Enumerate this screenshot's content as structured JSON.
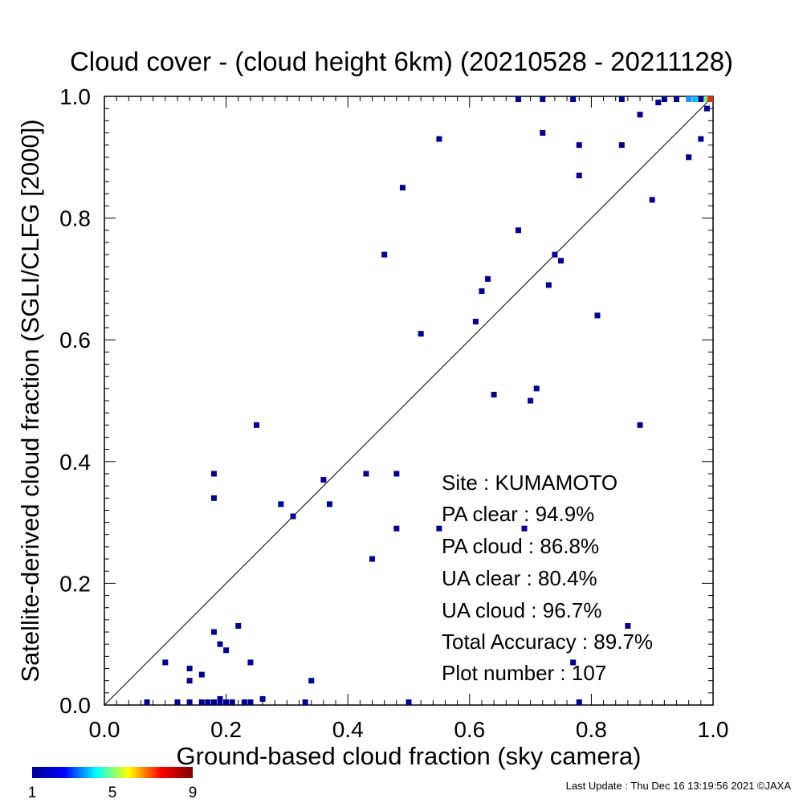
{
  "chart_data": {
    "type": "scatter",
    "title": "Cloud cover - (cloud height 6km)  (20210528 - 20211128)",
    "xlabel": "Ground-based cloud fraction (sky camera)",
    "ylabel": "Satellite-derived cloud fraction (SGLI/CLFG [2000])",
    "xlim": [
      0,
      1
    ],
    "ylim": [
      0,
      1
    ],
    "xticks": [
      "0.0",
      "0.2",
      "0.4",
      "0.6",
      "0.8",
      "1.0"
    ],
    "yticks": [
      "0.0",
      "0.2",
      "0.4",
      "0.6",
      "0.8",
      "1.0"
    ],
    "grid": false,
    "reference_line": "y = x",
    "points": [
      [
        0.07,
        0.0
      ],
      [
        0.12,
        0.0
      ],
      [
        0.14,
        0.0
      ],
      [
        0.16,
        0.0
      ],
      [
        0.17,
        0.0
      ],
      [
        0.18,
        0.0
      ],
      [
        0.19,
        0.0
      ],
      [
        0.2,
        0.0
      ],
      [
        0.21,
        0.0
      ],
      [
        0.23,
        0.0
      ],
      [
        0.24,
        0.0
      ],
      [
        0.33,
        0.0
      ],
      [
        0.5,
        0.0
      ],
      [
        0.78,
        0.0
      ],
      [
        0.19,
        0.01
      ],
      [
        0.26,
        0.01
      ],
      [
        0.34,
        0.04
      ],
      [
        0.14,
        0.04
      ],
      [
        0.14,
        0.06
      ],
      [
        0.16,
        0.05
      ],
      [
        0.1,
        0.07
      ],
      [
        0.24,
        0.07
      ],
      [
        0.2,
        0.09
      ],
      [
        0.19,
        0.1
      ],
      [
        0.18,
        0.12
      ],
      [
        0.22,
        0.13
      ],
      [
        0.77,
        0.07
      ],
      [
        0.86,
        0.13
      ],
      [
        0.44,
        0.24
      ],
      [
        0.48,
        0.29
      ],
      [
        0.55,
        0.29
      ],
      [
        0.69,
        0.29
      ],
      [
        0.29,
        0.33
      ],
      [
        0.31,
        0.31
      ],
      [
        0.37,
        0.33
      ],
      [
        0.18,
        0.34
      ],
      [
        0.36,
        0.37
      ],
      [
        0.43,
        0.38
      ],
      [
        0.48,
        0.38
      ],
      [
        0.18,
        0.38
      ],
      [
        0.25,
        0.46
      ],
      [
        0.88,
        0.46
      ],
      [
        0.64,
        0.51
      ],
      [
        0.7,
        0.5
      ],
      [
        0.71,
        0.52
      ],
      [
        0.52,
        0.61
      ],
      [
        0.61,
        0.63
      ],
      [
        0.81,
        0.64
      ],
      [
        0.62,
        0.68
      ],
      [
        0.63,
        0.7
      ],
      [
        0.73,
        0.69
      ],
      [
        0.74,
        0.74
      ],
      [
        0.75,
        0.73
      ],
      [
        0.46,
        0.74
      ],
      [
        0.68,
        0.78
      ],
      [
        0.49,
        0.85
      ],
      [
        0.78,
        0.87
      ],
      [
        0.9,
        0.83
      ],
      [
        0.96,
        0.9
      ],
      [
        0.55,
        0.93
      ],
      [
        0.72,
        0.94
      ],
      [
        0.78,
        0.92
      ],
      [
        0.85,
        0.92
      ],
      [
        0.98,
        0.93
      ],
      [
        0.88,
        0.97
      ],
      [
        0.91,
        0.99
      ],
      [
        0.99,
        0.98
      ],
      [
        0.68,
        1.0
      ],
      [
        0.72,
        1.0
      ],
      [
        0.77,
        1.0
      ],
      [
        0.85,
        1.0
      ],
      [
        0.92,
        1.0
      ],
      [
        0.94,
        1.0
      ],
      [
        0.96,
        1.0
      ],
      [
        0.97,
        1.0
      ],
      [
        0.98,
        1.0
      ],
      [
        0.99,
        1.0
      ],
      [
        1.0,
        1.0
      ]
    ],
    "point_colors": {
      "0.96,1": "#1e90ff",
      "0.97,1": "#00bfff",
      "0.99,1": "#7cfc7c",
      "1,1": "#e03020"
    },
    "default_point_color": "#00008b",
    "colorbar": {
      "min_label": "1",
      "mid_label": "5",
      "max_label": "9",
      "stops": [
        "#00008f",
        "#0000ff",
        "#00ffff",
        "#ffff00",
        "#ff0000",
        "#800000"
      ]
    }
  },
  "stats": {
    "site": "Site : KUMAMOTO",
    "pa_clear": "PA clear :  94.9%",
    "pa_cloud": "PA cloud :  86.8%",
    "ua_clear": "UA clear :  80.4%",
    "ua_cloud": "UA cloud :  96.7%",
    "total_accuracy": "Total Accuracy :  89.7%",
    "plot_number": "Plot number :       107"
  },
  "footer": "Last Update : Thu Dec 16 13:19:56 2021  ©JAXA"
}
